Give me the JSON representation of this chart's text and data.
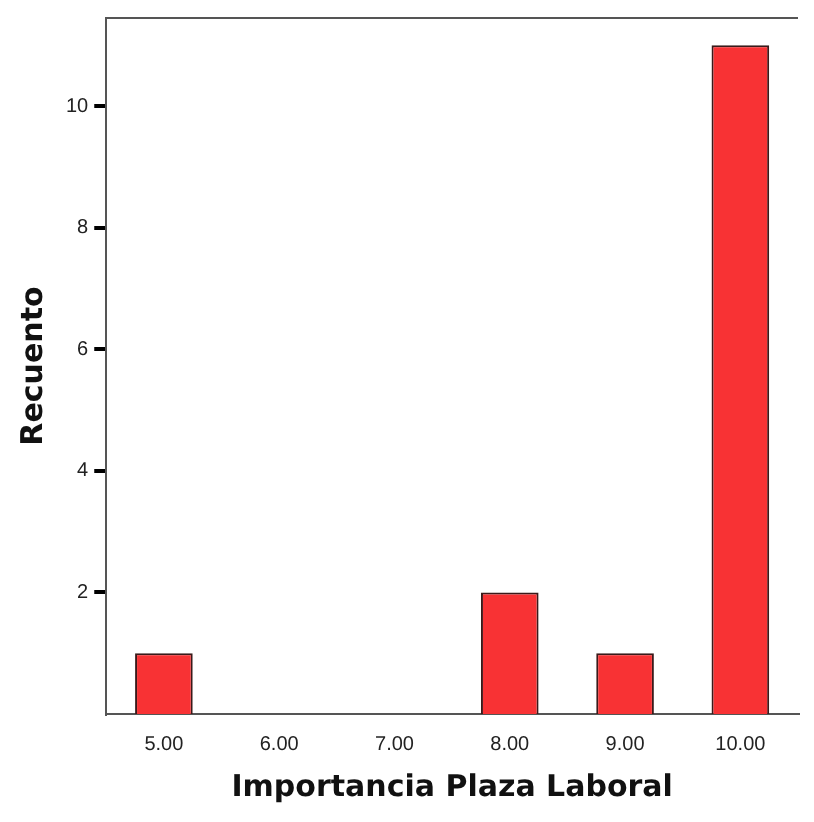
{
  "chart_data": {
    "type": "bar",
    "xlabel": "Importancia Plaza Laboral",
    "ylabel": "Recuento",
    "categories": [
      "5.00",
      "6.00",
      "7.00",
      "8.00",
      "9.00",
      "10.00"
    ],
    "values": [
      1,
      0,
      0,
      2,
      1,
      11
    ],
    "color": "#f83234",
    "ylim": [
      0,
      11.45
    ],
    "yticks": [
      2,
      4,
      6,
      8,
      10
    ],
    "grid": false,
    "legend": false
  }
}
